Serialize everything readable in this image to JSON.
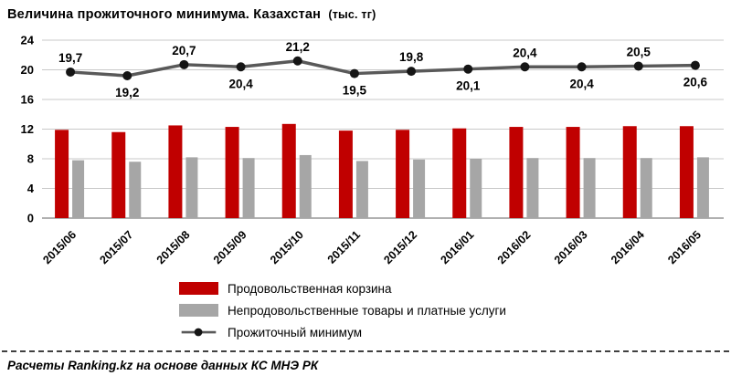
{
  "title": "Величина прожиточного минимума. Казахстан",
  "title_units": "(тыс. тг)",
  "footer": "Расчеты Ranking.kz на основе данных КС МНЭ РК",
  "colors": {
    "food_bar": "#C00000",
    "nonfood_bar": "#A6A6A6",
    "line": "#595959",
    "marker": "#151515",
    "grid": "#C9C9C9",
    "axis": "#808080"
  },
  "chart_data": {
    "type": "bar",
    "subtype": "grouped bars + line overlay",
    "categories": [
      "2015/06",
      "2015/07",
      "2015/08",
      "2015/09",
      "2015/10",
      "2015/11",
      "2015/12",
      "2016/01",
      "2016/02",
      "2016/03",
      "2016/04",
      "2016/05"
    ],
    "series": [
      {
        "name": "Продовольственная корзина",
        "type": "bar",
        "color": "#C00000",
        "values": [
          11.9,
          11.6,
          12.5,
          12.3,
          12.7,
          11.8,
          11.9,
          12.1,
          12.3,
          12.3,
          12.4,
          12.4
        ]
      },
      {
        "name": "Непродовольственные товары и платные услуги",
        "type": "bar",
        "color": "#A6A6A6",
        "values": [
          7.8,
          7.6,
          8.2,
          8.1,
          8.5,
          7.7,
          7.9,
          8.0,
          8.1,
          8.1,
          8.1,
          8.2
        ]
      },
      {
        "name": "Прожиточный минимум",
        "type": "line",
        "color": "#595959",
        "values": [
          19.7,
          19.2,
          20.7,
          20.4,
          21.2,
          19.5,
          19.8,
          20.1,
          20.4,
          20.4,
          20.5,
          20.6
        ],
        "labels": [
          "19,7",
          "19,2",
          "20,7",
          "20,4",
          "21,2",
          "19,5",
          "19,8",
          "20,1",
          "20,4",
          "20,4",
          "20,5",
          "20,6"
        ],
        "label_positions": [
          "above",
          "below",
          "above",
          "below",
          "above",
          "below",
          "above",
          "below",
          "above",
          "below",
          "above",
          "below"
        ]
      }
    ],
    "ylim": [
      0,
      24
    ],
    "yticks": [
      0,
      4,
      8,
      12,
      16,
      20,
      24
    ],
    "grid": true,
    "legend_position": "bottom-left"
  }
}
